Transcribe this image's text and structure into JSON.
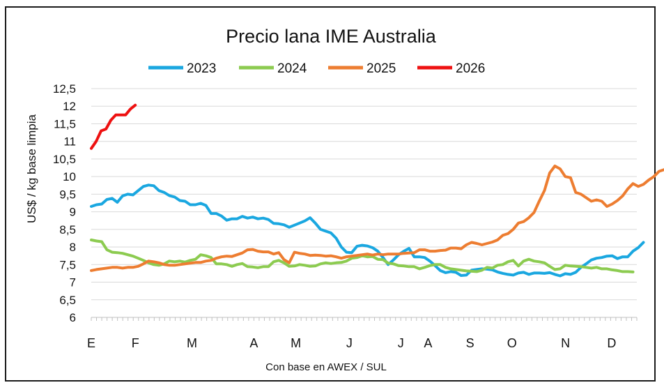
{
  "chart_data": {
    "type": "line",
    "title": "Precio lana IME Australia",
    "ylabel": "US$ / kg base limpia",
    "xlabel": "Con base en AWEX / SUL",
    "ylim": [
      6,
      12.5
    ],
    "xlim": [
      0,
      52
    ],
    "grid": true,
    "legend_position": "top",
    "y_ticks": [
      "12,5",
      "12",
      "11,5",
      "11",
      "10,5",
      "10",
      "9,5",
      "9",
      "8,5",
      "8",
      "7,5",
      "7",
      "6,5",
      "6"
    ],
    "y_tick_values": [
      12.5,
      12,
      11.5,
      11,
      10.5,
      10,
      9.5,
      9,
      8.5,
      8,
      7.5,
      7,
      6.5,
      6
    ],
    "x_ticks": [
      {
        "label": "E",
        "week": 0
      },
      {
        "label": "F",
        "week": 4.2
      },
      {
        "label": "M",
        "week": 9.6
      },
      {
        "label": "A",
        "week": 15.5
      },
      {
        "label": "M",
        "week": 19.5
      },
      {
        "label": "J",
        "week": 24.6
      },
      {
        "label": "J",
        "week": 29.5
      },
      {
        "label": "A",
        "week": 32.1
      },
      {
        "label": "S",
        "week": 36.1
      },
      {
        "label": "O",
        "week": 40.1
      },
      {
        "label": "N",
        "week": 45.2
      },
      {
        "label": "D",
        "week": 49.6
      }
    ],
    "series": [
      {
        "name": "2023",
        "color": "#1AA7E0",
        "values": [
          9.15,
          9.2,
          9.22,
          9.35,
          9.38,
          9.27,
          9.45,
          9.5,
          9.48,
          9.6,
          9.72,
          9.76,
          9.74,
          9.6,
          9.55,
          9.46,
          9.42,
          9.32,
          9.3,
          9.2,
          9.2,
          9.24,
          9.18,
          8.95,
          8.95,
          8.88,
          8.76,
          8.8,
          8.8,
          8.87,
          8.82,
          8.85,
          8.8,
          8.82,
          8.78,
          8.67,
          8.66,
          8.63,
          8.56,
          8.62,
          8.68,
          8.74,
          8.83,
          8.68,
          8.5,
          8.45,
          8.4,
          8.25,
          8.0,
          7.85,
          7.84,
          8.02,
          8.05,
          8.03,
          7.98,
          7.88,
          7.7,
          7.5,
          7.63,
          7.78,
          7.88,
          7.96,
          7.72,
          7.72,
          7.7,
          7.6,
          7.47,
          7.33,
          7.27,
          7.3,
          7.28,
          7.19,
          7.2,
          7.34,
          7.36,
          7.38,
          7.37,
          7.35,
          7.29,
          7.25,
          7.22,
          7.2,
          7.26,
          7.28,
          7.22,
          7.26,
          7.26,
          7.25,
          7.27,
          7.22,
          7.18,
          7.24,
          7.22,
          7.28,
          7.42,
          7.52,
          7.63,
          7.68,
          7.7,
          7.74,
          7.75,
          7.67,
          7.72,
          7.72,
          7.88,
          7.98,
          8.13
        ]
      },
      {
        "name": "2024",
        "color": "#8CCB50",
        "values": [
          8.2,
          8.17,
          8.15,
          7.92,
          7.85,
          7.84,
          7.82,
          7.78,
          7.74,
          7.68,
          7.62,
          7.55,
          7.5,
          7.48,
          7.52,
          7.6,
          7.58,
          7.6,
          7.57,
          7.62,
          7.65,
          7.78,
          7.75,
          7.7,
          7.52,
          7.52,
          7.5,
          7.45,
          7.5,
          7.53,
          7.44,
          7.43,
          7.41,
          7.44,
          7.44,
          7.58,
          7.62,
          7.55,
          7.45,
          7.46,
          7.5,
          7.48,
          7.45,
          7.46,
          7.52,
          7.55,
          7.53,
          7.55,
          7.56,
          7.6,
          7.68,
          7.7,
          7.75,
          7.72,
          7.73,
          7.65,
          7.64,
          7.54,
          7.52,
          7.47,
          7.46,
          7.44,
          7.44,
          7.38,
          7.42,
          7.47,
          7.5,
          7.5,
          7.42,
          7.38,
          7.36,
          7.34,
          7.32,
          7.31,
          7.3,
          7.34,
          7.42,
          7.4,
          7.48,
          7.5,
          7.58,
          7.62,
          7.46,
          7.6,
          7.65,
          7.6,
          7.58,
          7.55,
          7.45,
          7.36,
          7.38,
          7.48,
          7.46,
          7.45,
          7.44,
          7.42,
          7.4,
          7.42,
          7.38,
          7.38,
          7.35,
          7.33,
          7.3,
          7.3,
          7.29
        ]
      },
      {
        "name": "2025",
        "color": "#ED7D31",
        "values": [
          7.33,
          7.36,
          7.38,
          7.4,
          7.42,
          7.42,
          7.4,
          7.42,
          7.42,
          7.45,
          7.52,
          7.6,
          7.58,
          7.55,
          7.5,
          7.48,
          7.48,
          7.5,
          7.52,
          7.54,
          7.56,
          7.56,
          7.6,
          7.62,
          7.68,
          7.72,
          7.74,
          7.73,
          7.78,
          7.83,
          7.92,
          7.93,
          7.88,
          7.86,
          7.86,
          7.8,
          7.84,
          7.64,
          7.55,
          7.85,
          7.82,
          7.8,
          7.76,
          7.77,
          7.76,
          7.74,
          7.75,
          7.72,
          7.68,
          7.72,
          7.74,
          7.76,
          7.78,
          7.8,
          7.77,
          7.8,
          7.78,
          7.8,
          7.8,
          7.8,
          7.82,
          7.83,
          7.84,
          7.92,
          7.92,
          7.88,
          7.88,
          7.9,
          7.91,
          7.97,
          7.97,
          7.95,
          8.06,
          8.13,
          8.1,
          8.06,
          8.1,
          8.14,
          8.2,
          8.33,
          8.38,
          8.5,
          8.68,
          8.72,
          8.83,
          8.98,
          9.3,
          9.6,
          10.1,
          10.3,
          10.22,
          10.0,
          9.97,
          9.55,
          9.5,
          9.4,
          9.3,
          9.34,
          9.3,
          9.15,
          9.22,
          9.32,
          9.45,
          9.65,
          9.8,
          9.72,
          9.78,
          9.9,
          10.0,
          10.15,
          10.2,
          10.22,
          10.18
        ]
      },
      {
        "name": "2026",
        "color": "#EE1111",
        "values": [
          10.8,
          11.0,
          11.3,
          11.35,
          11.6,
          11.75,
          11.75,
          11.75,
          11.92,
          12.03
        ]
      }
    ]
  }
}
